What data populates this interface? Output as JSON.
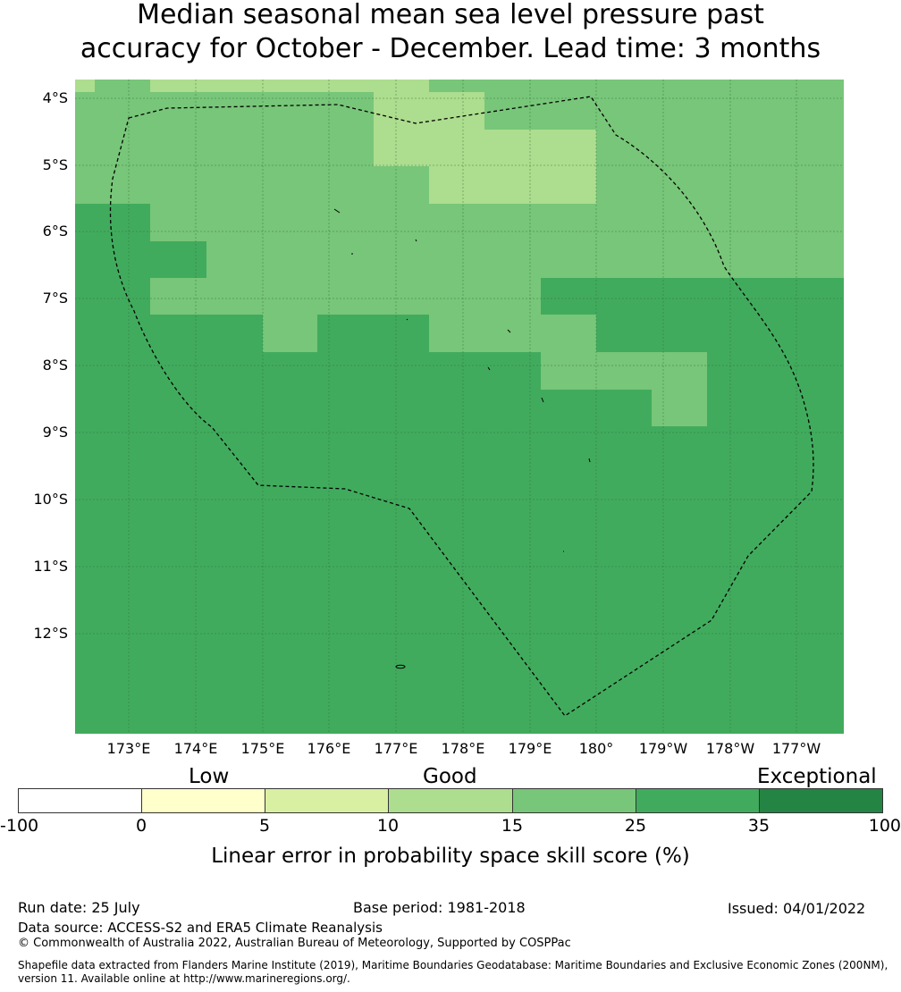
{
  "title": {
    "line1": "Median seasonal mean sea level pressure past",
    "line2": "accuracy for October - December. Lead time: 3 months"
  },
  "map": {
    "lat_labels": [
      "4°S",
      "5°S",
      "6°S",
      "7°S",
      "8°S",
      "9°S",
      "10°S",
      "11°S",
      "12°S"
    ],
    "lon_labels": [
      "173°E",
      "174°E",
      "175°E",
      "176°E",
      "177°E",
      "178°E",
      "179°E",
      "180°",
      "179°W",
      "178°W",
      "177°W"
    ],
    "lat_range": [
      -13.5,
      -3.74
    ],
    "lon_range": [
      172.19,
      183.67
    ],
    "grid": "on",
    "boundary": "dashed EEZ outline"
  },
  "legend": {
    "categories": [
      "Low",
      "Good",
      "Exceptional"
    ],
    "ticks": [
      "-100",
      "0",
      "5",
      "10",
      "15",
      "25",
      "35",
      "100"
    ],
    "colors": [
      "#ffffff",
      "#ffffcc",
      "#d9f0a3",
      "#addd8e",
      "#78c679",
      "#41ab5d",
      "#238443"
    ],
    "label": "Linear error in probability space skill score (%)"
  },
  "footer": {
    "run_date": "Run date: 25 July",
    "base_period": "Base period: 1981-2018",
    "issued": "Issued: 04/01/2022",
    "source": "Data source: ACCESS-S2 and ERA5 Climate Reanalysis",
    "copyright": "© Commonwealth of Australia 2022, Australian Bureau of Meteorology, Supported by COSPPac",
    "shapefile1": "Shapefile data extracted from Flanders Marine Institute (2019), Maritime Boundaries Geodatabase: Maritime Boundaries and Exclusive Economic Zones (200NM),",
    "shapefile2": "version 11. Available online at http://www.marineregions.org/."
  }
}
